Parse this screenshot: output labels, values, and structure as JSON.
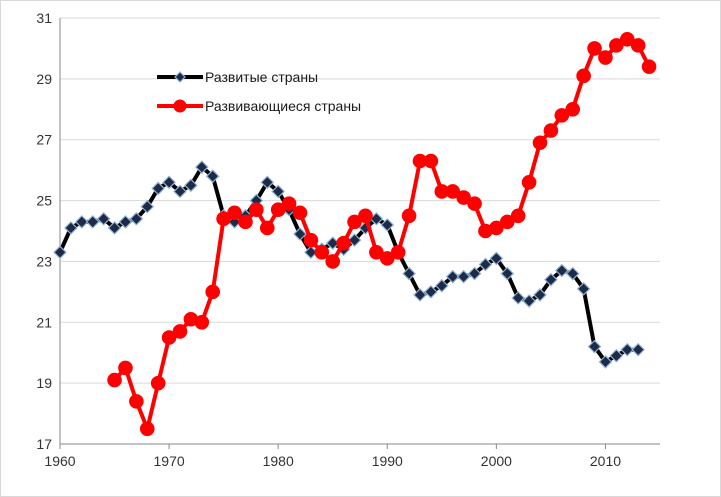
{
  "chart_data": {
    "type": "line",
    "title": "",
    "xlabel": "",
    "ylabel": "",
    "xlim": [
      1960,
      2015
    ],
    "ylim": [
      17,
      31
    ],
    "x_ticks": [
      1960,
      1970,
      1980,
      1990,
      2000,
      2010
    ],
    "x_tick_labels": [
      "1960",
      "1970",
      "1980",
      "1990",
      "2000",
      "2010"
    ],
    "y_ticks": [
      17,
      19,
      21,
      23,
      25,
      27,
      29,
      31
    ],
    "y_tick_labels": [
      "17",
      "19",
      "21",
      "23",
      "25",
      "27",
      "29",
      "31"
    ],
    "grid": "horizontal",
    "legend_position": "top-left inside",
    "series": [
      {
        "name": "Развитые страны",
        "color": "#000000",
        "marker": "diamond",
        "marker_fill": "#1f2a44",
        "marker_edge": "#8fb3dc",
        "points": [
          [
            1960,
            23.3
          ],
          [
            1961,
            24.1
          ],
          [
            1962,
            24.3
          ],
          [
            1963,
            24.3
          ],
          [
            1964,
            24.4
          ],
          [
            1965,
            24.1
          ],
          [
            1966,
            24.3
          ],
          [
            1967,
            24.4
          ],
          [
            1968,
            24.8
          ],
          [
            1969,
            25.4
          ],
          [
            1970,
            25.6
          ],
          [
            1971,
            25.3
          ],
          [
            1972,
            25.5
          ],
          [
            1973,
            26.1
          ],
          [
            1974,
            25.8
          ],
          [
            1975,
            24.5
          ],
          [
            1976,
            24.3
          ],
          [
            1977,
            24.5
          ],
          [
            1978,
            25.0
          ],
          [
            1979,
            25.6
          ],
          [
            1980,
            25.3
          ],
          [
            1981,
            24.7
          ],
          [
            1982,
            23.9
          ],
          [
            1983,
            23.3
          ],
          [
            1984,
            23.4
          ],
          [
            1985,
            23.6
          ],
          [
            1986,
            23.4
          ],
          [
            1987,
            23.7
          ],
          [
            1988,
            24.1
          ],
          [
            1989,
            24.4
          ],
          [
            1990,
            24.2
          ],
          [
            1991,
            23.3
          ],
          [
            1992,
            22.6
          ],
          [
            1993,
            21.9
          ],
          [
            1994,
            22.0
          ],
          [
            1995,
            22.2
          ],
          [
            1996,
            22.5
          ],
          [
            1997,
            22.5
          ],
          [
            1998,
            22.6
          ],
          [
            1999,
            22.9
          ],
          [
            2000,
            23.1
          ],
          [
            2001,
            22.6
          ],
          [
            2002,
            21.8
          ],
          [
            2003,
            21.7
          ],
          [
            2004,
            21.9
          ],
          [
            2005,
            22.4
          ],
          [
            2006,
            22.7
          ],
          [
            2007,
            22.6
          ],
          [
            2008,
            22.1
          ],
          [
            2009,
            20.2
          ],
          [
            2010,
            19.7
          ],
          [
            2011,
            19.9
          ],
          [
            2012,
            20.1
          ],
          [
            2013,
            20.1
          ]
        ]
      },
      {
        "name": "Развивающиеся страны",
        "color": "#ff0000",
        "marker": "circle",
        "marker_fill": "#ff0000",
        "marker_edge": "#ff0000",
        "points": [
          [
            1965,
            19.1
          ],
          [
            1966,
            19.5
          ],
          [
            1967,
            18.4
          ],
          [
            1968,
            17.5
          ],
          [
            1969,
            19.0
          ],
          [
            1970,
            20.5
          ],
          [
            1971,
            20.7
          ],
          [
            1972,
            21.1
          ],
          [
            1973,
            21.0
          ],
          [
            1974,
            22.0
          ],
          [
            1975,
            24.4
          ],
          [
            1976,
            24.6
          ],
          [
            1977,
            24.3
          ],
          [
            1978,
            24.7
          ],
          [
            1979,
            24.1
          ],
          [
            1980,
            24.7
          ],
          [
            1981,
            24.9
          ],
          [
            1982,
            24.6
          ],
          [
            1983,
            23.7
          ],
          [
            1984,
            23.3
          ],
          [
            1985,
            23.0
          ],
          [
            1986,
            23.6
          ],
          [
            1987,
            24.3
          ],
          [
            1988,
            24.5
          ],
          [
            1989,
            23.3
          ],
          [
            1990,
            23.1
          ],
          [
            1991,
            23.3
          ],
          [
            1992,
            24.5
          ],
          [
            1993,
            26.3
          ],
          [
            1994,
            26.3
          ],
          [
            1995,
            25.3
          ],
          [
            1996,
            25.3
          ],
          [
            1997,
            25.1
          ],
          [
            1998,
            24.9
          ],
          [
            1999,
            24.0
          ],
          [
            2000,
            24.1
          ],
          [
            2001,
            24.3
          ],
          [
            2002,
            24.5
          ],
          [
            2003,
            25.6
          ],
          [
            2004,
            26.9
          ],
          [
            2005,
            27.3
          ],
          [
            2006,
            27.8
          ],
          [
            2007,
            28.0
          ],
          [
            2008,
            29.1
          ],
          [
            2009,
            30.0
          ],
          [
            2010,
            29.7
          ],
          [
            2011,
            30.1
          ],
          [
            2012,
            30.3
          ],
          [
            2013,
            30.1
          ],
          [
            2014,
            29.4
          ]
        ]
      }
    ]
  }
}
